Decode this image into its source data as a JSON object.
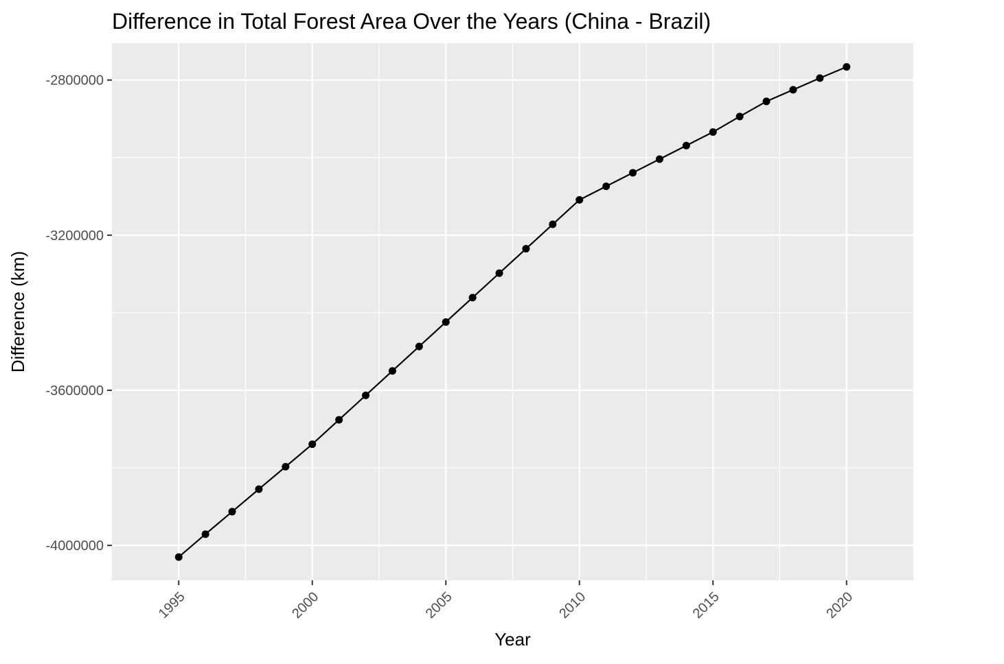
{
  "chart_data": {
    "type": "line",
    "title": "Difference in Total Forest Area Over the Years (China - Brazil)",
    "xlabel": "Year",
    "ylabel": "Difference (km)",
    "x_ticks": [
      1995,
      2000,
      2005,
      2010,
      2015,
      2020
    ],
    "x_tick_labels": [
      "1995",
      "2000",
      "2005",
      "2010",
      "2015",
      "2020"
    ],
    "y_ticks": [
      -4000000,
      -3600000,
      -3200000,
      -2800000
    ],
    "y_tick_labels": [
      "-4000000",
      "-3600000",
      "-3200000",
      "-2800000"
    ],
    "xlim": [
      1992.5,
      2022.5
    ],
    "ylim": [
      -4090000,
      -2705000
    ],
    "grid": true,
    "legend": "none",
    "colors": {
      "panel": "#ebebeb",
      "grid": "#ffffff",
      "line": "#000000",
      "point": "#000000"
    },
    "series": [
      {
        "x": [
          1995,
          1996,
          1997,
          1998,
          1999,
          2000,
          2001,
          2002,
          2003,
          2004,
          2005,
          2006,
          2007,
          2008,
          2009,
          2010,
          2011,
          2012,
          2013,
          2014,
          2015,
          2016,
          2017,
          2018,
          2019,
          2020
        ],
        "y": [
          -4030000,
          -3971000,
          -3913000,
          -3855000,
          -3797000,
          -3739000,
          -3676000,
          -3613000,
          -3550000,
          -3487000,
          -3424000,
          -3361000,
          -3298000,
          -3235000,
          -3172000,
          -3109000,
          -3074000,
          -3039000,
          -3004000,
          -2969000,
          -2934000,
          -2894000,
          -2855000,
          -2825000,
          -2795000,
          -2766000
        ]
      }
    ]
  }
}
